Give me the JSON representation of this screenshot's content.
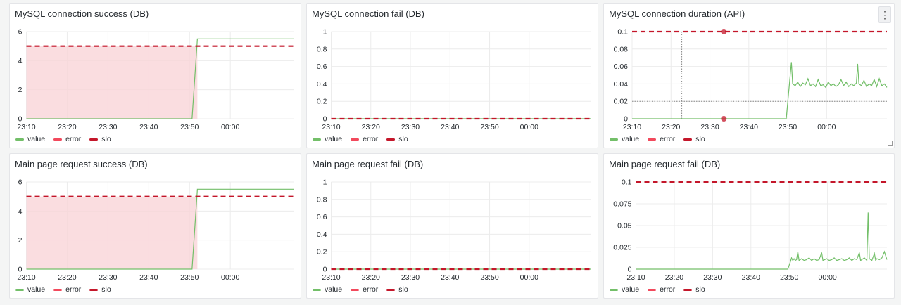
{
  "colors": {
    "value": "#73bf69",
    "error": "#f2495c",
    "slo": "#c4162a",
    "fill": "#f9d4d8",
    "grid": "#ececec",
    "crosshair": "#888888"
  },
  "legend": {
    "value": "value",
    "error": "error",
    "slo": "slo"
  },
  "menu_icon": "⋮",
  "panels": [
    {
      "title": "MySQL connection success (DB)",
      "chart_data": {
        "type": "line",
        "x_ticks": [
          "23:10",
          "23:20",
          "23:30",
          "23:40",
          "23:50",
          "00:00"
        ],
        "y_ticks": [
          "0",
          "2",
          "4",
          "6"
        ],
        "ylim": [
          0,
          6
        ],
        "slo": 5,
        "value_points": [
          [
            0,
            0
          ],
          [
            0.62,
            0
          ],
          [
            0.64,
            5.5
          ],
          [
            1,
            5.5
          ]
        ],
        "fill_until": 0.64
      }
    },
    {
      "title": "MySQL connection fail (DB)",
      "chart_data": {
        "type": "line",
        "x_ticks": [
          "23:10",
          "23:20",
          "23:30",
          "23:40",
          "23:50",
          "00:00"
        ],
        "y_ticks": [
          "0",
          "0.2",
          "0.4",
          "0.6",
          "0.8",
          "1"
        ],
        "ylim": [
          0,
          1
        ],
        "slo": 0,
        "value_points": [
          [
            0,
            0
          ],
          [
            1,
            0
          ]
        ]
      }
    },
    {
      "title": "MySQL connection duration (API)",
      "has_menu": true,
      "chart_data": {
        "type": "line",
        "x_ticks": [
          "23:10",
          "23:20",
          "23:30",
          "23:40",
          "23:50",
          "00:00"
        ],
        "y_ticks": [
          "0",
          "0.02",
          "0.04",
          "0.06",
          "0.08",
          "0.1"
        ],
        "ylim": [
          0,
          0.1
        ],
        "slo": 0.1,
        "crosshair": {
          "x": 0.195,
          "y": 0.02
        },
        "markers": [
          [
            0.36,
            0.1
          ],
          [
            0.36,
            0
          ]
        ],
        "value_points": [
          [
            0,
            0
          ],
          [
            0.605,
            0
          ],
          [
            0.625,
            0.065
          ],
          [
            0.63,
            0.04
          ],
          [
            0.64,
            0.038
          ],
          [
            0.65,
            0.042
          ],
          [
            0.66,
            0.037
          ],
          [
            0.67,
            0.041
          ],
          [
            0.68,
            0.039
          ],
          [
            0.69,
            0.046
          ],
          [
            0.7,
            0.038
          ],
          [
            0.71,
            0.04
          ],
          [
            0.72,
            0.037
          ],
          [
            0.73,
            0.045
          ],
          [
            0.74,
            0.038
          ],
          [
            0.75,
            0.039
          ],
          [
            0.76,
            0.036
          ],
          [
            0.77,
            0.042
          ],
          [
            0.78,
            0.038
          ],
          [
            0.79,
            0.04
          ],
          [
            0.8,
            0.037
          ],
          [
            0.81,
            0.039
          ],
          [
            0.82,
            0.045
          ],
          [
            0.83,
            0.038
          ],
          [
            0.84,
            0.042
          ],
          [
            0.85,
            0.037
          ],
          [
            0.86,
            0.04
          ],
          [
            0.87,
            0.038
          ],
          [
            0.88,
            0.041
          ],
          [
            0.885,
            0.063
          ],
          [
            0.89,
            0.04
          ],
          [
            0.9,
            0.038
          ],
          [
            0.91,
            0.044
          ],
          [
            0.92,
            0.037
          ],
          [
            0.93,
            0.04
          ],
          [
            0.94,
            0.038
          ],
          [
            0.95,
            0.045
          ],
          [
            0.96,
            0.037
          ],
          [
            0.97,
            0.046
          ],
          [
            0.98,
            0.038
          ],
          [
            0.99,
            0.04
          ],
          [
            1,
            0.036
          ]
        ]
      }
    },
    {
      "title": "Main page request success (DB)",
      "chart_data": {
        "type": "line",
        "x_ticks": [
          "23:10",
          "23:20",
          "23:30",
          "23:40",
          "23:50",
          "00:00"
        ],
        "y_ticks": [
          "0",
          "2",
          "4",
          "6"
        ],
        "ylim": [
          0,
          6
        ],
        "slo": 5,
        "value_points": [
          [
            0,
            0
          ],
          [
            0.62,
            0
          ],
          [
            0.64,
            5.5
          ],
          [
            1,
            5.5
          ]
        ],
        "fill_until": 0.64
      }
    },
    {
      "title": "Main page request fail (DB)",
      "chart_data": {
        "type": "line",
        "x_ticks": [
          "23:10",
          "23:20",
          "23:30",
          "23:40",
          "23:50",
          "00:00"
        ],
        "y_ticks": [
          "0",
          "0.2",
          "0.4",
          "0.6",
          "0.8",
          "1"
        ],
        "ylim": [
          0,
          1
        ],
        "slo": 0,
        "value_points": [
          [
            0,
            0
          ],
          [
            1,
            0
          ]
        ]
      }
    },
    {
      "title": "Main page request fail (DB)",
      "chart_data": {
        "type": "line",
        "x_ticks": [
          "23:10",
          "23:20",
          "23:30",
          "23:40",
          "23:50",
          "00:00"
        ],
        "y_ticks": [
          "0",
          "0.025",
          "0.05",
          "0.075",
          "0.1"
        ],
        "ylim": [
          0,
          0.1
        ],
        "slo": 0.1,
        "value_points": [
          [
            0,
            0
          ],
          [
            0.605,
            0
          ],
          [
            0.615,
            0.008
          ],
          [
            0.62,
            0.013
          ],
          [
            0.625,
            0.01
          ],
          [
            0.63,
            0.012
          ],
          [
            0.635,
            0.01
          ],
          [
            0.64,
            0.011
          ],
          [
            0.645,
            0.02
          ],
          [
            0.65,
            0.01
          ],
          [
            0.66,
            0.012
          ],
          [
            0.67,
            0.01
          ],
          [
            0.68,
            0.011
          ],
          [
            0.69,
            0.013
          ],
          [
            0.7,
            0.01
          ],
          [
            0.71,
            0.012
          ],
          [
            0.72,
            0.01
          ],
          [
            0.73,
            0.011
          ],
          [
            0.74,
            0.019
          ],
          [
            0.745,
            0.01
          ],
          [
            0.76,
            0.012
          ],
          [
            0.77,
            0.01
          ],
          [
            0.78,
            0.011
          ],
          [
            0.79,
            0.013
          ],
          [
            0.8,
            0.01
          ],
          [
            0.81,
            0.011
          ],
          [
            0.82,
            0.012
          ],
          [
            0.83,
            0.01
          ],
          [
            0.84,
            0.011
          ],
          [
            0.85,
            0.013
          ],
          [
            0.86,
            0.01
          ],
          [
            0.87,
            0.012
          ],
          [
            0.88,
            0.011
          ],
          [
            0.89,
            0.019
          ],
          [
            0.895,
            0.01
          ],
          [
            0.9,
            0.011
          ],
          [
            0.91,
            0.013
          ],
          [
            0.92,
            0.01
          ],
          [
            0.925,
            0.065
          ],
          [
            0.93,
            0.012
          ],
          [
            0.94,
            0.01
          ],
          [
            0.95,
            0.018
          ],
          [
            0.955,
            0.01
          ],
          [
            0.96,
            0.012
          ],
          [
            0.97,
            0.011
          ],
          [
            0.98,
            0.013
          ],
          [
            0.99,
            0.02
          ],
          [
            1,
            0.011
          ]
        ]
      }
    }
  ]
}
